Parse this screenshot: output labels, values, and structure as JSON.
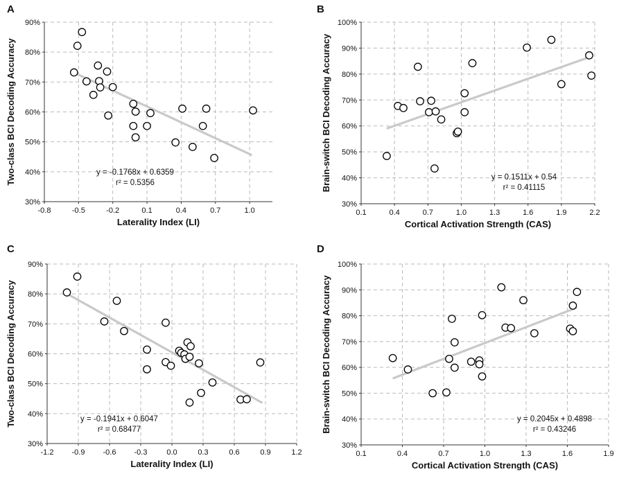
{
  "chart_data": [
    {
      "panel": "A",
      "type": "scatter",
      "xlabel": "Laterality Index (LI)",
      "ylabel": "Two-class BCI Decoding Accuracy",
      "xlim": [
        -0.8,
        1.2
      ],
      "ylim": [
        0.3,
        0.9
      ],
      "xticks": [
        -0.8,
        -0.5,
        -0.2,
        0.1,
        0.4,
        0.7,
        1.0
      ],
      "xtick_labels": [
        "-0.8",
        "-0.5",
        "-0.2",
        "0.1",
        "0.4",
        "0.7",
        "1.0"
      ],
      "yticks": [
        0.3,
        0.4,
        0.5,
        0.6,
        0.7,
        0.8,
        0.9
      ],
      "ytick_labels": [
        "30%",
        "40%",
        "50%",
        "60%",
        "70%",
        "80%",
        "90%"
      ],
      "grid": true,
      "equation": "y = -0.1768x + 0.6359",
      "r2": "r² = 0.5356",
      "trend": {
        "slope": -0.1768,
        "intercept": 0.6359,
        "x_range": [
          -0.55,
          1.02
        ]
      },
      "points": [
        [
          -0.54,
          0.732
        ],
        [
          -0.51,
          0.821
        ],
        [
          -0.47,
          0.867
        ],
        [
          -0.43,
          0.702
        ],
        [
          -0.37,
          0.657
        ],
        [
          -0.33,
          0.755
        ],
        [
          -0.32,
          0.703
        ],
        [
          -0.31,
          0.682
        ],
        [
          -0.25,
          0.735
        ],
        [
          -0.24,
          0.588
        ],
        [
          -0.2,
          0.683
        ],
        [
          -0.02,
          0.627
        ],
        [
          -0.02,
          0.553
        ],
        [
          0.0,
          0.515
        ],
        [
          0.0,
          0.601
        ],
        [
          0.1,
          0.553
        ],
        [
          0.13,
          0.596
        ],
        [
          0.35,
          0.498
        ],
        [
          0.41,
          0.611
        ],
        [
          0.5,
          0.483
        ],
        [
          0.59,
          0.553
        ],
        [
          0.62,
          0.611
        ],
        [
          0.69,
          0.446
        ],
        [
          1.03,
          0.605
        ]
      ]
    },
    {
      "panel": "B",
      "type": "scatter",
      "xlabel": "Cortical  Activation  Strength (CAS)",
      "ylabel": "Brain-switch BCI Decoding Accuracy",
      "xlim": [
        0.1,
        2.2
      ],
      "ylim": [
        0.3,
        1.0
      ],
      "xticks": [
        0.1,
        0.4,
        0.7,
        1.0,
        1.3,
        1.6,
        1.9,
        2.2
      ],
      "xtick_labels": [
        "0.1",
        "0.4",
        "0.7",
        "1.0",
        "1.3",
        "1.6",
        "1.9",
        "2.2"
      ],
      "yticks": [
        0.3,
        0.4,
        0.5,
        0.6,
        0.7,
        0.8,
        0.9,
        1.0
      ],
      "ytick_labels": [
        "30%",
        "40%",
        "50%",
        "60%",
        "70%",
        "80%",
        "90%",
        "100%"
      ],
      "grid": true,
      "equation": "y = 0.1511x + 0.54",
      "r2": "r² = 0.41115",
      "trend": {
        "slope": 0.1511,
        "intercept": 0.54,
        "x_range": [
          0.33,
          2.17
        ]
      },
      "points": [
        [
          0.33,
          0.484
        ],
        [
          0.43,
          0.677
        ],
        [
          0.48,
          0.669
        ],
        [
          0.61,
          0.828
        ],
        [
          0.63,
          0.695
        ],
        [
          0.71,
          0.653
        ],
        [
          0.73,
          0.697
        ],
        [
          0.76,
          0.436
        ],
        [
          0.77,
          0.656
        ],
        [
          0.82,
          0.625
        ],
        [
          0.96,
          0.572
        ],
        [
          0.97,
          0.578
        ],
        [
          1.03,
          0.726
        ],
        [
          1.03,
          0.653
        ],
        [
          1.1,
          0.842
        ],
        [
          1.59,
          0.902
        ],
        [
          1.81,
          0.932
        ],
        [
          1.9,
          0.761
        ],
        [
          2.15,
          0.872
        ],
        [
          2.17,
          0.794
        ]
      ]
    },
    {
      "panel": "C",
      "type": "scatter",
      "xlabel": "Laterality Index (LI)",
      "ylabel": "Two-class BCI Decoding Accuracy",
      "xlim": [
        -1.2,
        1.2
      ],
      "ylim": [
        0.3,
        0.9
      ],
      "xticks": [
        -1.2,
        -0.9,
        -0.6,
        -0.3,
        0.0,
        0.3,
        0.6,
        0.9,
        1.2
      ],
      "xtick_labels": [
        "-1.2",
        "-0.9",
        "-0.6",
        "-0.3",
        "0.0",
        "0.3",
        "0.6",
        "0.9",
        "1.2"
      ],
      "yticks": [
        0.3,
        0.4,
        0.5,
        0.6,
        0.7,
        0.8,
        0.9
      ],
      "ytick_labels": [
        "30%",
        "40%",
        "50%",
        "60%",
        "70%",
        "80%",
        "90%"
      ],
      "grid": true,
      "equation": "y = -0.1941x + 0.6047",
      "r2": "r² = 0.68477",
      "trend": {
        "slope": -0.1941,
        "intercept": 0.6047,
        "x_range": [
          -1.02,
          0.87
        ]
      },
      "points": [
        [
          -1.01,
          0.805
        ],
        [
          -0.91,
          0.858
        ],
        [
          -0.65,
          0.708
        ],
        [
          -0.53,
          0.777
        ],
        [
          -0.46,
          0.676
        ],
        [
          -0.24,
          0.548
        ],
        [
          -0.24,
          0.614
        ],
        [
          -0.06,
          0.704
        ],
        [
          -0.06,
          0.572
        ],
        [
          -0.01,
          0.56
        ],
        [
          0.07,
          0.61
        ],
        [
          0.09,
          0.603
        ],
        [
          0.12,
          0.598
        ],
        [
          0.13,
          0.583
        ],
        [
          0.15,
          0.638
        ],
        [
          0.17,
          0.59
        ],
        [
          0.17,
          0.437
        ],
        [
          0.18,
          0.625
        ],
        [
          0.26,
          0.568
        ],
        [
          0.28,
          0.469
        ],
        [
          0.39,
          0.504
        ],
        [
          0.66,
          0.447
        ],
        [
          0.72,
          0.448
        ],
        [
          0.85,
          0.571
        ]
      ]
    },
    {
      "panel": "D",
      "type": "scatter",
      "xlabel": "Cortical  Activation  Strength (CAS)",
      "ylabel": "Brain-switch BCI Decoding Accuracy",
      "xlim": [
        0.1,
        1.9
      ],
      "ylim": [
        0.3,
        1.0
      ],
      "xticks": [
        0.1,
        0.4,
        0.7,
        1.0,
        1.3,
        1.6,
        1.9
      ],
      "xtick_labels": [
        "0.1",
        "0.4",
        "0.7",
        "1.0",
        "1.3",
        "1.6",
        "1.9"
      ],
      "yticks": [
        0.3,
        0.4,
        0.5,
        0.6,
        0.7,
        0.8,
        0.9,
        1.0
      ],
      "ytick_labels": [
        "30%",
        "40%",
        "50%",
        "60%",
        "70%",
        "80%",
        "90%",
        "100%"
      ],
      "grid": true,
      "equation": "y = 0.2045x + 0.4898",
      "r2": "r² = 0.43246",
      "trend": {
        "slope": 0.2045,
        "intercept": 0.4898,
        "x_range": [
          0.33,
          1.67
        ]
      },
      "points": [
        [
          0.33,
          0.636
        ],
        [
          0.44,
          0.592
        ],
        [
          0.62,
          0.5
        ],
        [
          0.72,
          0.503
        ],
        [
          0.74,
          0.633
        ],
        [
          0.76,
          0.788
        ],
        [
          0.78,
          0.697
        ],
        [
          0.78,
          0.599
        ],
        [
          0.9,
          0.622
        ],
        [
          0.96,
          0.627
        ],
        [
          0.96,
          0.612
        ],
        [
          0.98,
          0.802
        ],
        [
          0.98,
          0.565
        ],
        [
          1.12,
          0.91
        ],
        [
          1.15,
          0.754
        ],
        [
          1.19,
          0.752
        ],
        [
          1.28,
          0.86
        ],
        [
          1.36,
          0.732
        ],
        [
          1.62,
          0.75
        ],
        [
          1.64,
          0.839
        ],
        [
          1.64,
          0.74
        ],
        [
          1.67,
          0.892
        ]
      ]
    }
  ]
}
